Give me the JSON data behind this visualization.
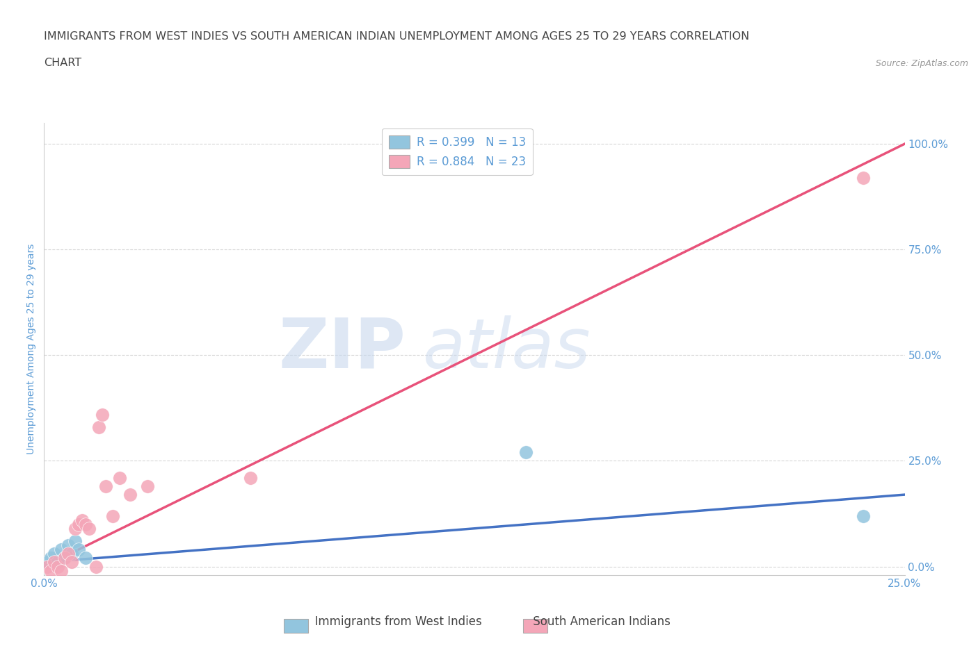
{
  "title_line1": "IMMIGRANTS FROM WEST INDIES VS SOUTH AMERICAN INDIAN UNEMPLOYMENT AMONG AGES 25 TO 29 YEARS CORRELATION",
  "title_line2": "CHART",
  "source": "Source: ZipAtlas.com",
  "ylabel": "Unemployment Among Ages 25 to 29 years",
  "xlim": [
    0.0,
    0.25
  ],
  "ylim": [
    -0.02,
    1.05
  ],
  "xtick_labels": [
    "0.0%",
    "25.0%"
  ],
  "ytick_labels": [
    "0.0%",
    "25.0%",
    "50.0%",
    "75.0%",
    "100.0%"
  ],
  "ytick_values": [
    0.0,
    0.25,
    0.5,
    0.75,
    1.0
  ],
  "xtick_values": [
    0.0,
    0.25
  ],
  "blue_scatter_x": [
    0.001,
    0.002,
    0.003,
    0.004,
    0.005,
    0.006,
    0.007,
    0.008,
    0.009,
    0.01,
    0.012,
    0.14,
    0.238
  ],
  "blue_scatter_y": [
    0.01,
    0.02,
    0.03,
    0.01,
    0.04,
    0.02,
    0.05,
    0.03,
    0.06,
    0.04,
    0.02,
    0.27,
    0.12
  ],
  "pink_scatter_x": [
    0.001,
    0.002,
    0.003,
    0.004,
    0.005,
    0.006,
    0.007,
    0.008,
    0.009,
    0.01,
    0.011,
    0.012,
    0.013,
    0.015,
    0.016,
    0.017,
    0.018,
    0.02,
    0.022,
    0.025,
    0.03,
    0.06,
    0.238
  ],
  "pink_scatter_y": [
    0.0,
    -0.01,
    0.01,
    0.0,
    -0.01,
    0.02,
    0.03,
    0.01,
    0.09,
    0.1,
    0.11,
    0.1,
    0.09,
    0.0,
    0.33,
    0.36,
    0.19,
    0.12,
    0.21,
    0.17,
    0.19,
    0.21,
    0.92
  ],
  "blue_line_x": [
    0.0,
    0.25
  ],
  "blue_line_y": [
    0.01,
    0.17
  ],
  "pink_line_x": [
    -0.005,
    0.25
  ],
  "pink_line_y": [
    -0.02,
    1.0
  ],
  "blue_color": "#92C5DE",
  "pink_color": "#F4A6B8",
  "blue_line_color": "#4472C4",
  "pink_line_color": "#E8527A",
  "R_blue": "R = 0.399",
  "N_blue": "N = 13",
  "R_pink": "R = 0.884",
  "N_pink": "N = 23",
  "legend1": "Immigrants from West Indies",
  "legend2": "South American Indians",
  "watermark_zip": "ZIP",
  "watermark_atlas": "atlas",
  "background_color": "#FFFFFF",
  "grid_color": "#CCCCCC",
  "title_color": "#444444",
  "axis_label_color": "#5B9BD5",
  "tick_label_color": "#5B9BD5",
  "title_fontsize": 11.5,
  "axis_label_fontsize": 10,
  "tick_fontsize": 11,
  "legend_fontsize": 12
}
